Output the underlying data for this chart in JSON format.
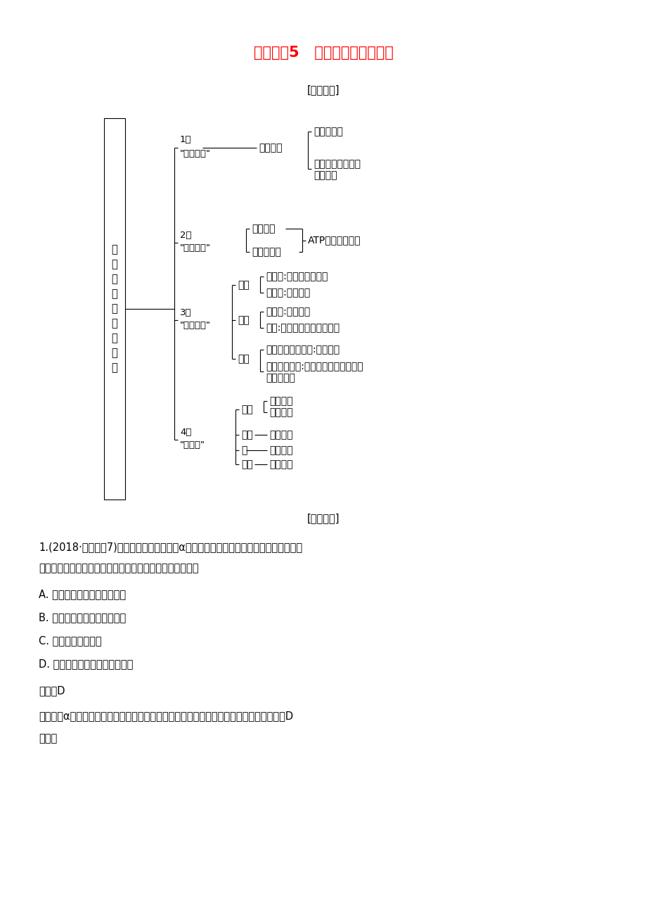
{
  "title": "热点微练5   物质出入细胞的方式",
  "title_color": "#FF0000",
  "title_fontsize": 15,
  "subtitle1": "[规律方法]",
  "subtitle2": "[方法体验]",
  "bg_color": "#FFFFFF",
  "q_line1": "1.(2018·海南卷，7)小麦种子萌发过程中，α－淀粉酶在糊粉层的细胞中合成，在胚乳中",
  "q_line2": "分解淀粉。该酶从糊粉层细胞排到细胞外的方式是（　　）",
  "q_A": "A. 顺浓度梯度经自由扩散排出",
  "q_B": "B. 逆浓度梯度经协助扩散排出",
  "q_C": "C. 通过离子通道排出",
  "q_D": "D. 含该酶的囊泡与质膜融合排出",
  "q_ans": "答案　D",
  "q_exp1": "解析　　α－淀粉酶的化学本质是大分子蛋白质，从糊粉层细胞排到细胞外的方式是胞吐，D",
  "q_exp2": "正确。"
}
